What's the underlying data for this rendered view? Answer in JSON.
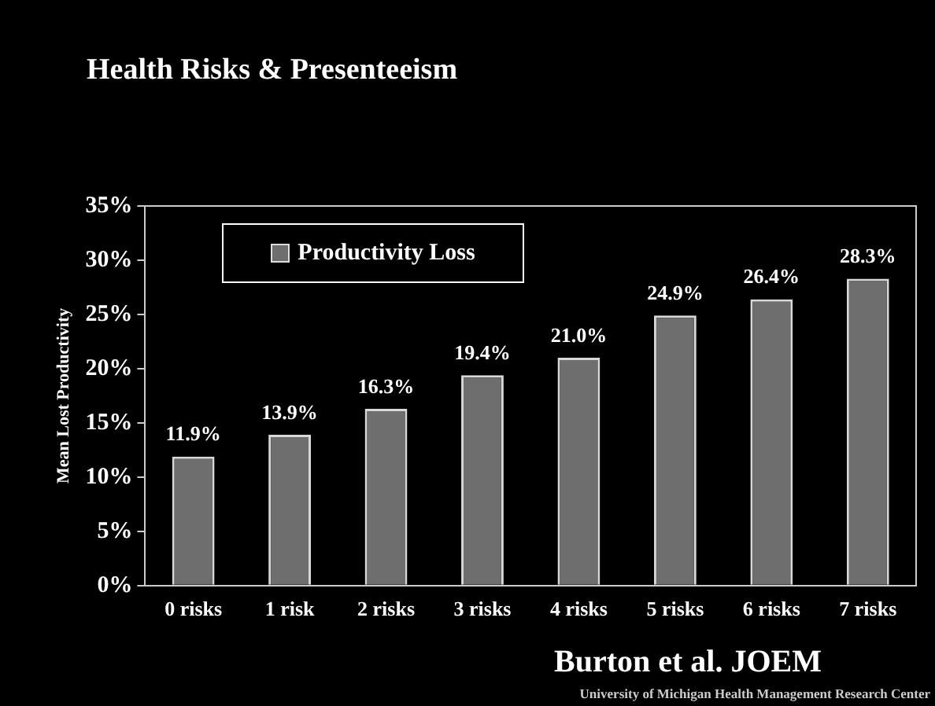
{
  "chart_data": {
    "type": "bar",
    "title": "Health Risks & Presenteeism",
    "ylabel": "Mean Lost Productivity",
    "categories": [
      "0 risks",
      "1 risk",
      "2 risks",
      "3 risks",
      "4 risks",
      "5 risks",
      "6 risks",
      "7 risks"
    ],
    "series": [
      {
        "name": "Productivity Loss",
        "color": "#6e6e6e",
        "values": [
          11.9,
          13.9,
          16.3,
          19.4,
          21.0,
          24.9,
          26.4,
          28.3
        ],
        "value_labels": [
          "11.9%",
          "13.9%",
          "16.3%",
          "19.4%",
          "21.0%",
          "24.9%",
          "26.4%",
          "28.3%"
        ]
      }
    ],
    "ylim": [
      0,
      35
    ],
    "yticks": [
      {
        "value": 0,
        "label": "0%"
      },
      {
        "value": 5,
        "label": "5%"
      },
      {
        "value": 10,
        "label": "10%"
      },
      {
        "value": 15,
        "label": "15%"
      },
      {
        "value": 20,
        "label": "20%"
      },
      {
        "value": 25,
        "label": "25%"
      },
      {
        "value": 30,
        "label": "30%"
      },
      {
        "value": 35,
        "label": "35%"
      }
    ],
    "grid": false,
    "legend": "top left",
    "annotations": [
      "Burton et al. JOEM",
      "University of Michigan Health Management Research Center"
    ]
  }
}
